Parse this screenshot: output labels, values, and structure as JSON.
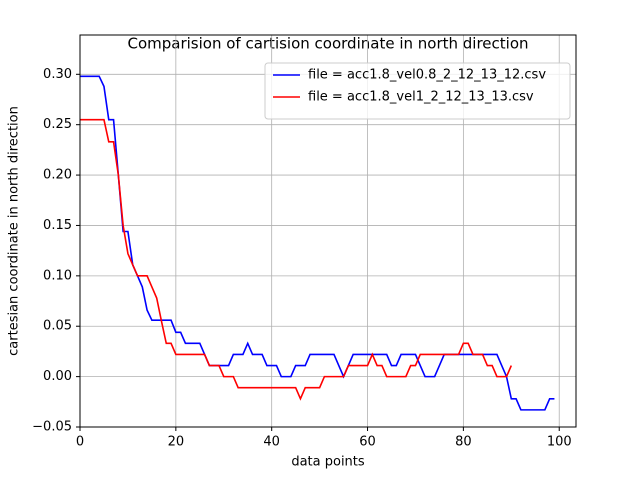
{
  "chart_data": {
    "type": "line",
    "title": "Comparision of cartision coordinate in north direction",
    "x_label": "data points",
    "y_label": "cartesian coordinate in north direction",
    "xlim": [
      0,
      103.5
    ],
    "ylim": [
      -0.05,
      0.339
    ],
    "xticks": [
      0,
      20,
      40,
      60,
      80,
      100
    ],
    "yticks": [
      {
        "value": -0.05,
        "label": "−0.05"
      },
      {
        "value": 0,
        "label": "0.00"
      },
      {
        "value": 0.05,
        "label": "0.05"
      },
      {
        "value": 0.1,
        "label": "0.10"
      },
      {
        "value": 0.15,
        "label": "0.15"
      },
      {
        "value": 0.2,
        "label": "0.20"
      },
      {
        "value": 0.25,
        "label": "0.25"
      },
      {
        "value": 0.3,
        "label": "0.30"
      }
    ],
    "grid": true,
    "legend": "upper right",
    "series": [
      {
        "name": "file = acc1.8_vel0.8_2_12_13_12.csv",
        "color": "#0000ff",
        "x": [
          0,
          1,
          2,
          3,
          4,
          5,
          6,
          7,
          8,
          9,
          10,
          11,
          12,
          13,
          14,
          15,
          16,
          17,
          18,
          19,
          20,
          21,
          22,
          23,
          24,
          25,
          26,
          27,
          28,
          29,
          30,
          31,
          32,
          33,
          34,
          35,
          36,
          37,
          38,
          39,
          40,
          41,
          42,
          43,
          44,
          45,
          46,
          47,
          48,
          49,
          50,
          51,
          52,
          53,
          54,
          55,
          56,
          57,
          58,
          59,
          60,
          61,
          62,
          63,
          64,
          65,
          66,
          67,
          68,
          69,
          70,
          71,
          72,
          73,
          74,
          75,
          76,
          77,
          78,
          79,
          80,
          81,
          82,
          83,
          84,
          85,
          86,
          87,
          88,
          89,
          90,
          91,
          92,
          93,
          94,
          95,
          96,
          97,
          98,
          99
        ],
        "values": [
          0.298,
          0.298,
          0.298,
          0.298,
          0.298,
          0.288,
          0.255,
          0.255,
          0.2,
          0.144,
          0.144,
          0.111,
          0.1,
          0.089,
          0.066,
          0.056,
          0.056,
          0.056,
          0.056,
          0.056,
          0.044,
          0.044,
          0.033,
          0.033,
          0.033,
          0.033,
          0.022,
          0.011,
          0.011,
          0.011,
          0.011,
          0.011,
          0.022,
          0.022,
          0.022,
          0.033,
          0.022,
          0.022,
          0.022,
          0.011,
          0.011,
          0.011,
          0,
          0,
          0,
          0.011,
          0.011,
          0.011,
          0.022,
          0.022,
          0.022,
          0.022,
          0.022,
          0.022,
          0.011,
          0,
          0.011,
          0.022,
          0.022,
          0.022,
          0.022,
          0.022,
          0.022,
          0.022,
          0.022,
          0.011,
          0.011,
          0.022,
          0.022,
          0.022,
          0.022,
          0.011,
          0,
          0,
          0,
          0.011,
          0.022,
          0.022,
          0.022,
          0.022,
          0.022,
          0.022,
          0.022,
          0.022,
          0.022,
          0.022,
          0.022,
          0.022,
          0.011,
          0,
          -0.022,
          -0.022,
          -0.033,
          -0.033,
          -0.033,
          -0.033,
          -0.033,
          -0.033,
          -0.022,
          -0.022
        ]
      },
      {
        "name": "file = acc1.8_vel1_2_12_13_13.csv",
        "color": "#ff0000",
        "x": [
          0,
          1,
          2,
          3,
          4,
          5,
          6,
          7,
          8,
          9,
          10,
          11,
          12,
          13,
          14,
          15,
          16,
          17,
          18,
          19,
          20,
          21,
          22,
          23,
          24,
          25,
          26,
          27,
          28,
          29,
          30,
          31,
          32,
          33,
          34,
          35,
          36,
          37,
          38,
          39,
          40,
          41,
          42,
          43,
          44,
          45,
          46,
          47,
          48,
          49,
          50,
          51,
          52,
          53,
          54,
          55,
          56,
          57,
          58,
          59,
          60,
          61,
          62,
          63,
          64,
          65,
          66,
          67,
          68,
          69,
          70,
          71,
          72,
          73,
          74,
          75,
          76,
          77,
          78,
          79,
          80,
          81,
          82,
          83,
          84,
          85,
          86,
          87,
          88,
          89,
          90
        ],
        "values": [
          0.255,
          0.255,
          0.255,
          0.255,
          0.255,
          0.255,
          0.233,
          0.233,
          0.2,
          0.15,
          0.122,
          0.111,
          0.1,
          0.1,
          0.1,
          0.089,
          0.078,
          0.055,
          0.033,
          0.033,
          0.022,
          0.022,
          0.022,
          0.022,
          0.022,
          0.022,
          0.022,
          0.011,
          0.011,
          0.011,
          0,
          0,
          0,
          -0.011,
          -0.011,
          -0.011,
          -0.011,
          -0.011,
          -0.011,
          -0.011,
          -0.011,
          -0.011,
          -0.011,
          -0.011,
          -0.011,
          -0.011,
          -0.022,
          -0.011,
          -0.011,
          -0.011,
          -0.011,
          0,
          0,
          0,
          0,
          0,
          0.011,
          0.011,
          0.011,
          0.011,
          0.011,
          0.022,
          0.011,
          0.011,
          0,
          0,
          0,
          0,
          0,
          0.011,
          0.011,
          0.022,
          0.022,
          0.022,
          0.022,
          0.022,
          0.022,
          0.022,
          0.022,
          0.022,
          0.033,
          0.033,
          0.022,
          0.022,
          0.022,
          0.011,
          0.011,
          0,
          0,
          0,
          0.011
        ]
      }
    ]
  }
}
